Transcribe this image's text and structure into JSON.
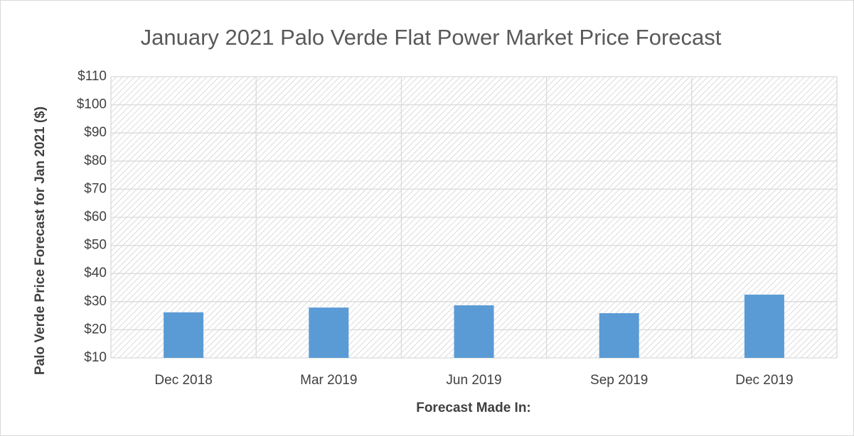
{
  "chart_data": {
    "type": "bar",
    "title": "January 2021 Palo Verde Flat Power Market Price Forecast",
    "x_label": "Forecast Made In:",
    "y_label": "Palo Verde Price Forecast for Jan 2021 ($)",
    "categories": [
      "Dec 2018",
      "Mar 2019",
      "Jun 2019",
      "Sep 2019",
      "Dec 2019"
    ],
    "values": [
      26.2,
      27.9,
      28.7,
      25.9,
      32.5
    ],
    "color": "#5b9bd5",
    "ylim": [
      10,
      110
    ],
    "yticks": [
      {
        "value": 10,
        "label": "$10"
      },
      {
        "value": 20,
        "label": "$20"
      },
      {
        "value": 30,
        "label": "$30"
      },
      {
        "value": 40,
        "label": "$40"
      },
      {
        "value": 50,
        "label": "$50"
      },
      {
        "value": 60,
        "label": "$60"
      },
      {
        "value": 70,
        "label": "$70"
      },
      {
        "value": 80,
        "label": "$80"
      },
      {
        "value": 90,
        "label": "$90"
      },
      {
        "value": 100,
        "label": "$100"
      },
      {
        "value": 110,
        "label": "$110"
      }
    ],
    "grid": true
  }
}
